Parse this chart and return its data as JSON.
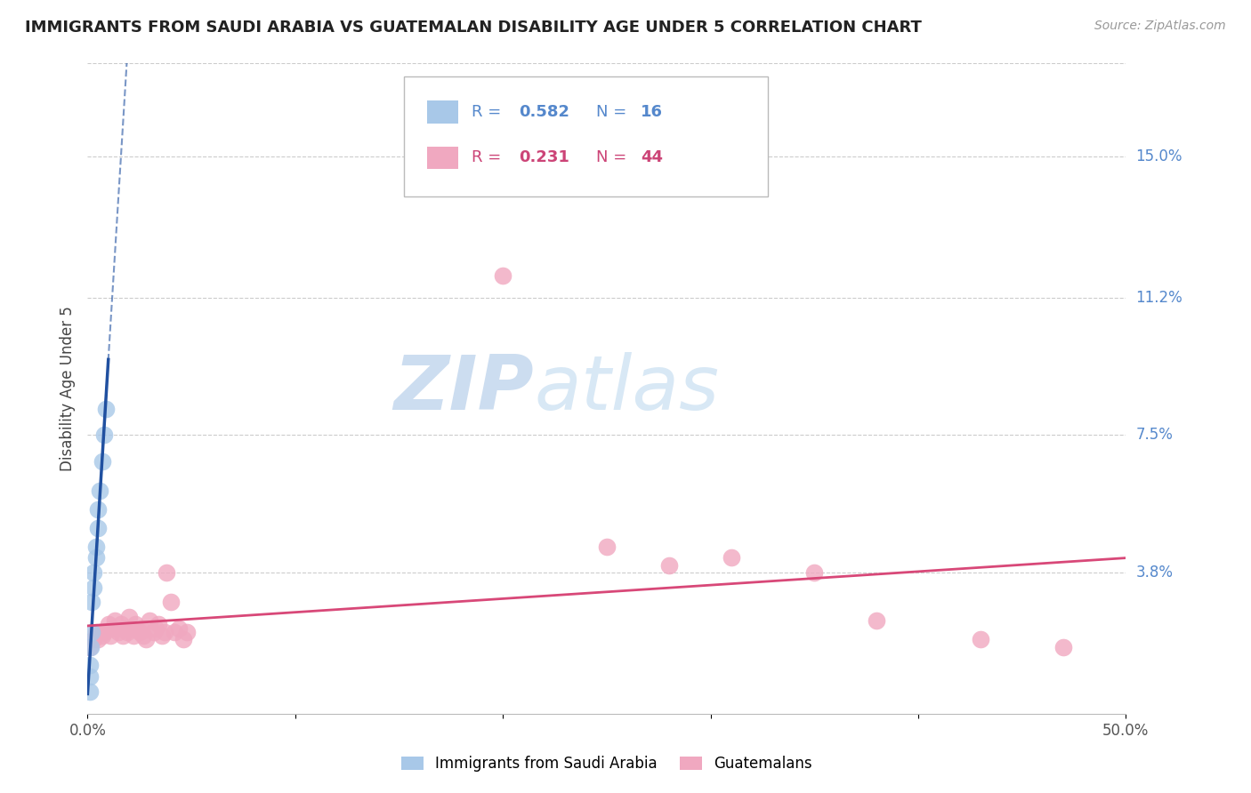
{
  "title": "IMMIGRANTS FROM SAUDI ARABIA VS GUATEMALAN DISABILITY AGE UNDER 5 CORRELATION CHART",
  "source": "Source: ZipAtlas.com",
  "ylabel": "Disability Age Under 5",
  "xlim": [
    0.0,
    0.5
  ],
  "ylim": [
    0.0,
    0.175
  ],
  "yticks": [
    0.038,
    0.075,
    0.112,
    0.15
  ],
  "ytick_labels": [
    "3.8%",
    "7.5%",
    "11.2%",
    "15.0%"
  ],
  "xtick_positions": [
    0.0,
    0.1,
    0.2,
    0.3,
    0.4,
    0.5
  ],
  "xtick_labels": [
    "0.0%",
    "",
    "",
    "",
    "",
    "50.0%"
  ],
  "saudi_R": 0.582,
  "saudi_N": 16,
  "guatemalan_R": 0.231,
  "guatemalan_N": 44,
  "saudi_color": "#a8c8e8",
  "saudi_line_color": "#2050a0",
  "guatemalan_color": "#f0a8c0",
  "guatemalan_line_color": "#d84878",
  "saudi_x": [
    0.001,
    0.001,
    0.0015,
    0.002,
    0.002,
    0.003,
    0.003,
    0.004,
    0.004,
    0.005,
    0.005,
    0.006,
    0.007,
    0.008,
    0.009,
    0.001
  ],
  "saudi_y": [
    0.01,
    0.013,
    0.018,
    0.022,
    0.03,
    0.034,
    0.038,
    0.042,
    0.045,
    0.05,
    0.055,
    0.06,
    0.068,
    0.075,
    0.082,
    0.006
  ],
  "guatemalan_x": [
    0.001,
    0.003,
    0.004,
    0.005,
    0.006,
    0.007,
    0.008,
    0.01,
    0.011,
    0.012,
    0.013,
    0.015,
    0.016,
    0.017,
    0.018,
    0.019,
    0.02,
    0.021,
    0.022,
    0.023,
    0.025,
    0.026,
    0.027,
    0.028,
    0.03,
    0.032,
    0.033,
    0.034,
    0.036,
    0.037,
    0.038,
    0.04,
    0.042,
    0.044,
    0.046,
    0.048,
    0.2,
    0.25,
    0.28,
    0.31,
    0.35,
    0.38,
    0.43,
    0.47
  ],
  "guatemalan_y": [
    0.018,
    0.02,
    0.022,
    0.02,
    0.022,
    0.021,
    0.022,
    0.024,
    0.021,
    0.023,
    0.025,
    0.022,
    0.024,
    0.021,
    0.023,
    0.022,
    0.026,
    0.023,
    0.021,
    0.024,
    0.022,
    0.023,
    0.021,
    0.02,
    0.025,
    0.022,
    0.023,
    0.024,
    0.021,
    0.022,
    0.038,
    0.03,
    0.022,
    0.023,
    0.02,
    0.022,
    0.118,
    0.045,
    0.04,
    0.042,
    0.038,
    0.025,
    0.02,
    0.018
  ],
  "watermark_zip": "ZIP",
  "watermark_atlas": "atlas",
  "legend_labels": [
    "Immigrants from Saudi Arabia",
    "Guatemalans"
  ],
  "background_color": "#ffffff",
  "grid_color": "#cccccc",
  "right_label_color": "#5588cc",
  "title_fontsize": 13,
  "axis_label_fontsize": 12,
  "tick_fontsize": 12
}
